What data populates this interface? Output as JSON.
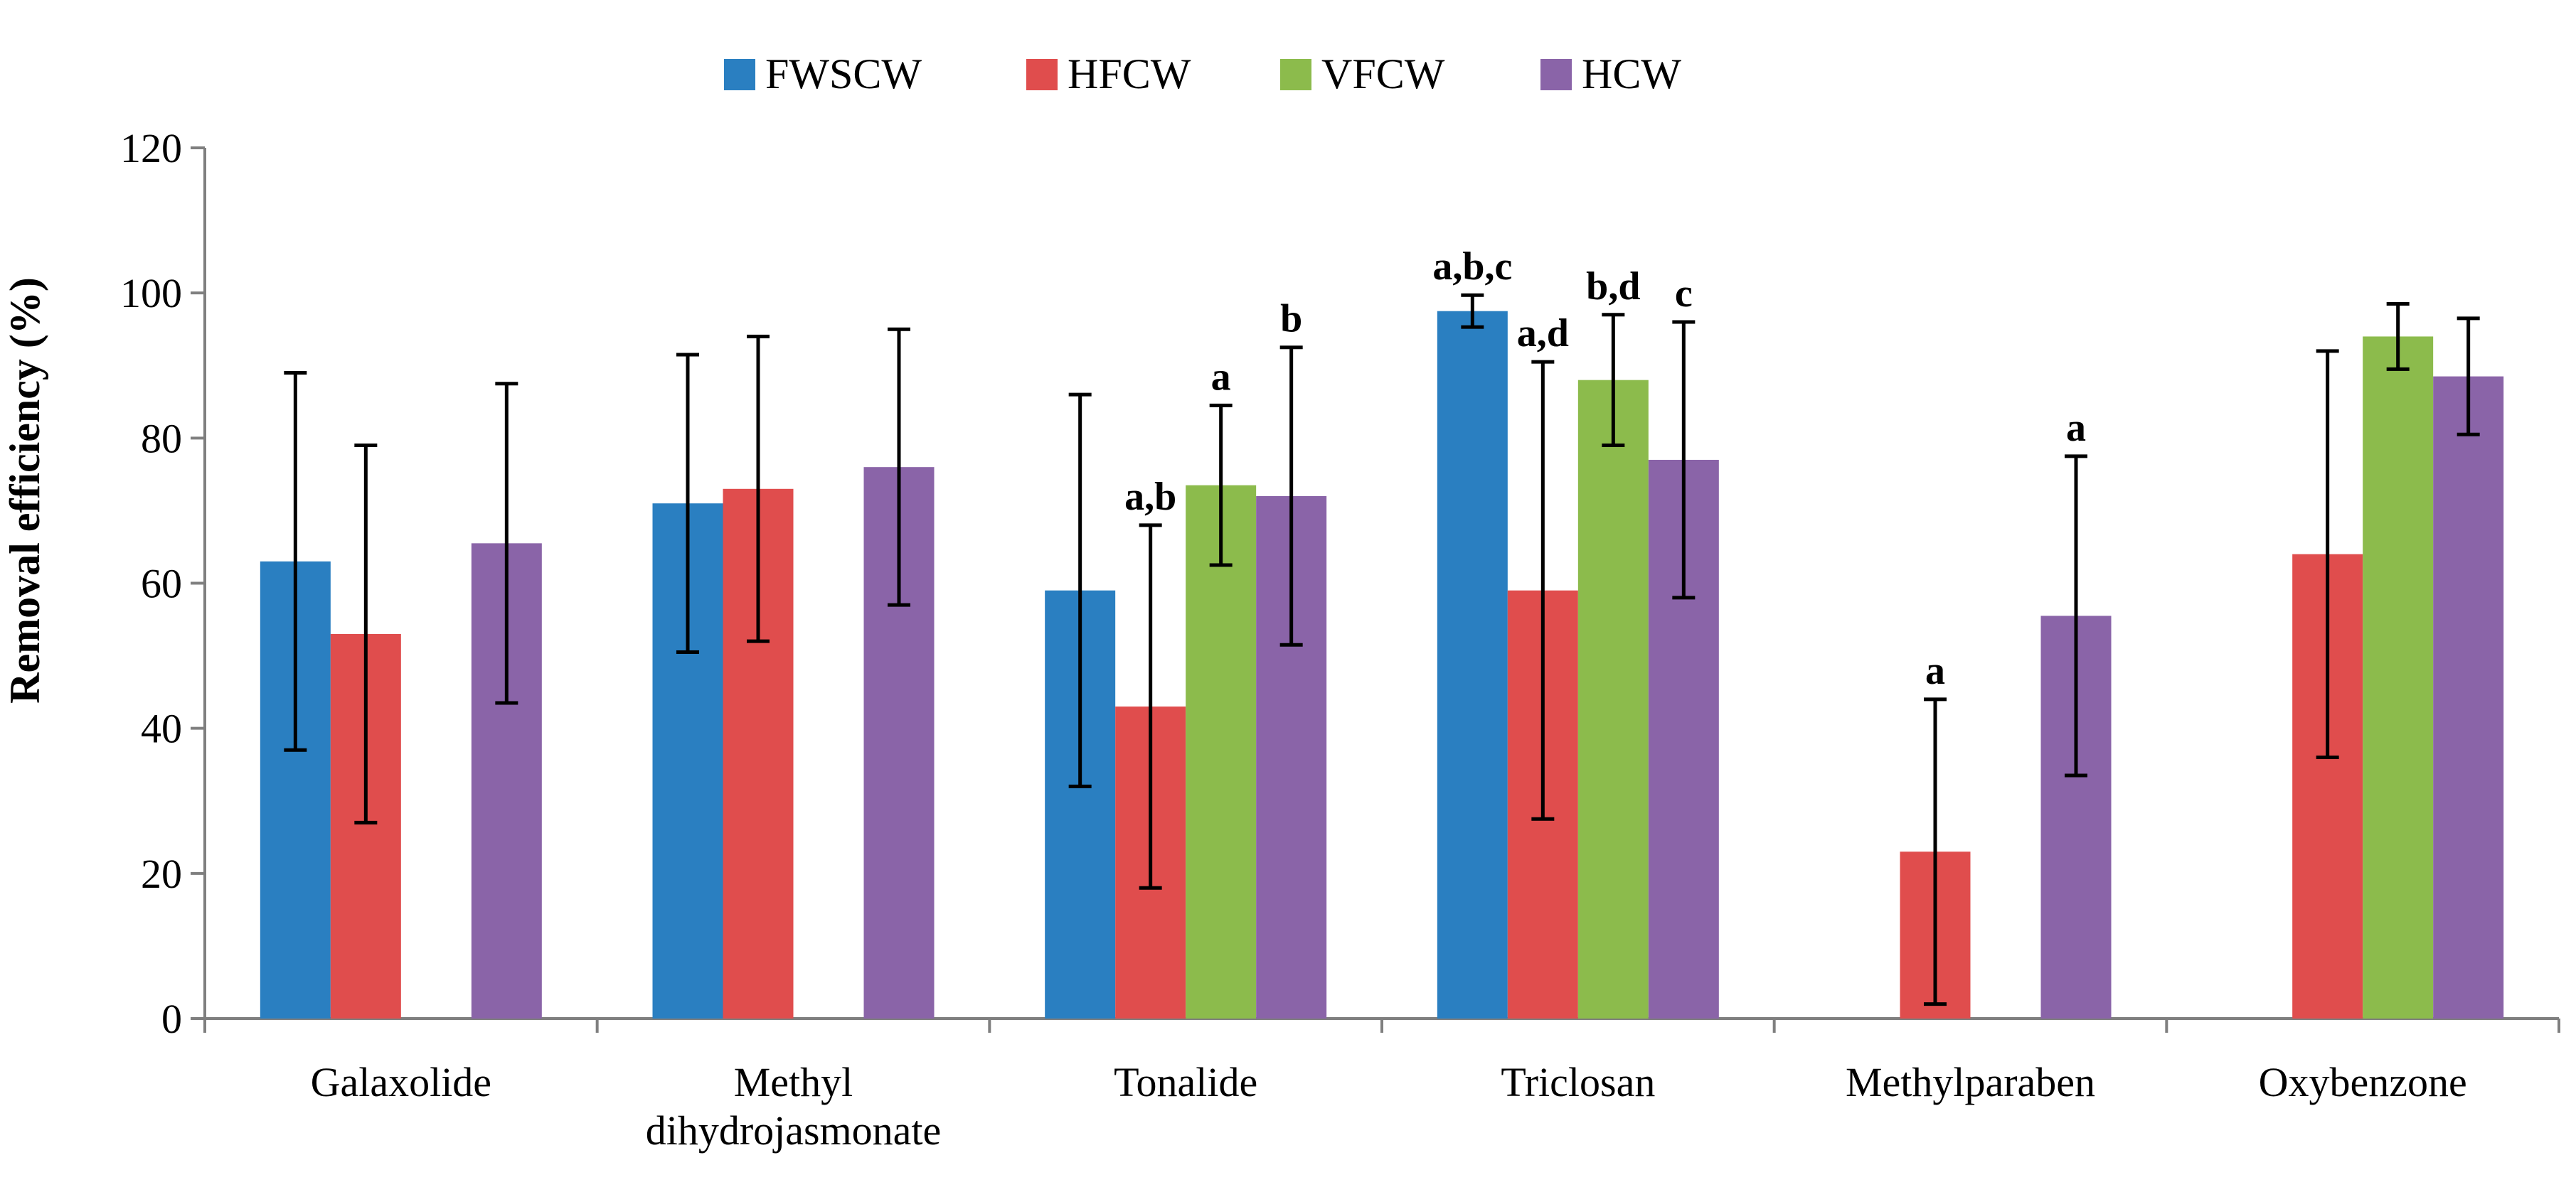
{
  "chart_data": {
    "type": "bar",
    "title": "",
    "xlabel": "",
    "ylabel": "Removal efficiency (%)",
    "ylim": [
      0,
      120
    ],
    "yticks": [
      0,
      20,
      40,
      60,
      80,
      100,
      120
    ],
    "grid": false,
    "legend_position": "top-center",
    "categories": [
      [
        "Galaxolide"
      ],
      [
        "Methyl",
        "dihydrojasmonate"
      ],
      [
        "Tonalide"
      ],
      [
        "Triclosan"
      ],
      [
        "Methylparaben"
      ],
      [
        "Oxybenzone"
      ]
    ],
    "series": [
      {
        "name": "FWSCW",
        "color": "#2a7fc1",
        "values": [
          63,
          71,
          59,
          97.5,
          null,
          null
        ],
        "error": [
          26,
          20.5,
          27,
          2.2,
          null,
          null
        ],
        "labels": [
          "",
          "",
          "",
          "a,b,c",
          "",
          ""
        ]
      },
      {
        "name": "HFCW",
        "color": "#e04d4d",
        "values": [
          53,
          73,
          43,
          59,
          23,
          64
        ],
        "error": [
          26,
          21,
          25,
          31.5,
          21,
          28
        ],
        "labels": [
          "",
          "",
          "a,b",
          "a,d",
          "a",
          ""
        ]
      },
      {
        "name": "VFCW",
        "color": "#8cbb4c",
        "values": [
          null,
          null,
          73.5,
          88,
          null,
          94
        ],
        "error": [
          null,
          null,
          11,
          9,
          null,
          4.5
        ],
        "labels": [
          "",
          "",
          "a",
          "b,d",
          "",
          ""
        ]
      },
      {
        "name": "HCW",
        "color": "#8a64a8",
        "values": [
          65.5,
          76,
          72,
          77,
          55.5,
          88.5
        ],
        "error": [
          22,
          19,
          20.5,
          19,
          22,
          8
        ],
        "labels": [
          "",
          "",
          "b",
          "c",
          "a",
          ""
        ]
      }
    ]
  }
}
